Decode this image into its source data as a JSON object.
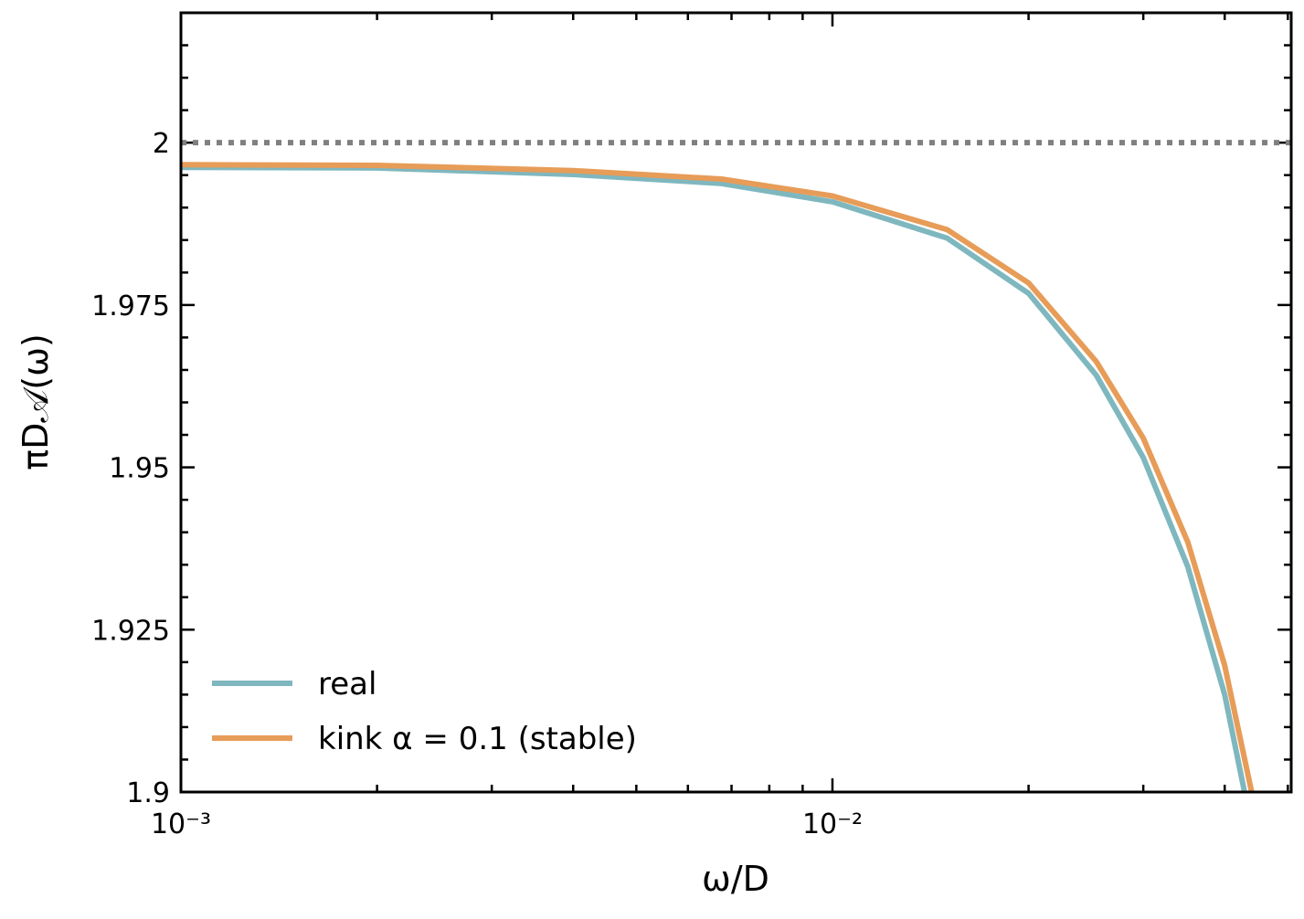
{
  "chart_data": {
    "type": "line",
    "x_label": "ω/D",
    "y_label": "πD𝒜(ω)",
    "x_scale": "log",
    "xlim": [
      0.001,
      0.0506
    ],
    "ylim": [
      1.9,
      2.02
    ],
    "xticks": [
      {
        "value": 0.001,
        "label": "10⁻³"
      },
      {
        "value": 0.01,
        "label": "10⁻²"
      }
    ],
    "xminorticks": [
      0.002,
      0.003,
      0.004,
      0.005,
      0.006,
      0.007,
      0.008,
      0.009,
      0.02,
      0.03,
      0.04,
      0.05
    ],
    "yticks": [
      1.9,
      1.925,
      1.95,
      1.975,
      2
    ],
    "yminorticks": [
      1.905,
      1.91,
      1.915,
      1.92,
      1.93,
      1.935,
      1.94,
      1.945,
      1.955,
      1.96,
      1.965,
      1.97,
      1.98,
      1.985,
      1.99,
      1.995,
      2.005,
      2.01,
      2.015
    ],
    "hlines": [
      {
        "value": 2,
        "color": "#808080"
      }
    ],
    "legend": "lower left",
    "series": [
      {
        "name": "real",
        "color": "#7fb7bf",
        "x": [
          0.001,
          0.002,
          0.004,
          0.00676,
          0.01,
          0.015,
          0.02,
          0.0254,
          0.03,
          0.0351,
          0.04,
          0.0429
        ],
        "values": [
          1.9962,
          1.9961,
          1.9951,
          1.9937,
          1.9909,
          1.9853,
          1.9768,
          1.9642,
          1.9515,
          1.9347,
          1.915,
          1.9
        ]
      },
      {
        "name": "kink α = 0.1 (stable)",
        "color": "#e79c58",
        "x": [
          0.001,
          0.002,
          0.004,
          0.00676,
          0.01,
          0.015,
          0.02,
          0.0254,
          0.03,
          0.0351,
          0.04,
          0.044
        ],
        "values": [
          1.9966,
          1.9965,
          1.9957,
          1.9944,
          1.9918,
          1.9866,
          1.9784,
          1.9663,
          1.9545,
          1.9385,
          1.9195,
          1.9
        ]
      }
    ]
  }
}
